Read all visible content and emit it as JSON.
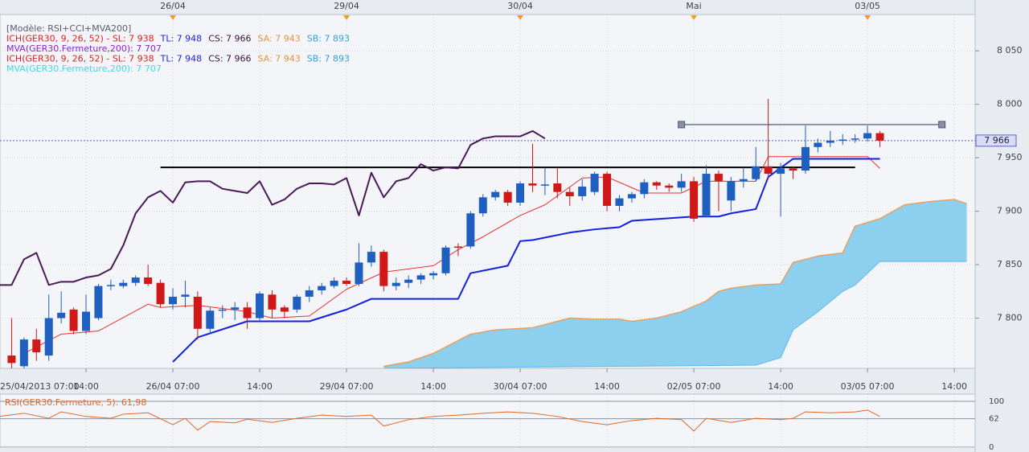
{
  "chart_data": {
    "type": "candlestick",
    "legend_lines": [
      [
        {
          "text": "[Modèle: RSI+CCI+MVA200]",
          "color": "#5a5a70"
        }
      ],
      [
        {
          "text": "ICH(GER30, 9, 26, 52) -  SL: 7 938",
          "color": "#e02020"
        },
        {
          "text": "TL: 7 948",
          "color": "#2020e0"
        },
        {
          "text": "CS: 7 966",
          "color": "#3a1040"
        },
        {
          "text": "SA: 7 943",
          "color": "#e89040"
        },
        {
          "text": "SB: 7 893",
          "color": "#30a0e0"
        }
      ],
      [
        {
          "text": "MVA(GER30.Fermeture,200): 7 707",
          "color": "#9020d0"
        }
      ],
      [
        {
          "text": "ICH(GER30, 9, 26, 52) -  SL: 7 938",
          "color": "#e02020"
        },
        {
          "text": "TL: 7 948",
          "color": "#2020e0"
        },
        {
          "text": "CS: 7 966",
          "color": "#3a1040"
        },
        {
          "text": "SA: 7 943",
          "color": "#e89040"
        },
        {
          "text": "SB: 7 893",
          "color": "#30a0e0"
        }
      ],
      [
        {
          "text": "MVA(GER30.Fermeture,200): 7 707",
          "color": "#40d8e8"
        }
      ]
    ],
    "top_labels": {
      "x": [
        14,
        28,
        42,
        56,
        70
      ],
      "labels": [
        "26/04",
        "29/04",
        "30/04",
        "Mai",
        "03/05"
      ],
      "color": "#f0a020"
    },
    "xticks": [
      {
        "value": 0,
        "label": "25/04/2013 07:00"
      },
      {
        "value": 7,
        "label": "14:00"
      },
      {
        "value": 14,
        "label": "26/04 07:00"
      },
      {
        "value": 21,
        "label": "14:00"
      },
      {
        "value": 28,
        "label": "29/04 07:00"
      },
      {
        "value": 35,
        "label": "14:00"
      },
      {
        "value": 42,
        "label": "30/04 07:00"
      },
      {
        "value": 49,
        "label": "14:00"
      },
      {
        "value": 56,
        "label": "02/05 07:00"
      },
      {
        "value": 63,
        "label": "14:00"
      },
      {
        "value": 70,
        "label": "03/05 07:00"
      },
      {
        "value": 77,
        "label": "14:00"
      }
    ],
    "ylim": [
      7753,
      8084
    ],
    "yticks": [
      {
        "value": 7800,
        "label": "7 800"
      },
      {
        "value": 7850,
        "label": "7 850"
      },
      {
        "value": 7900,
        "label": "7 900"
      },
      {
        "value": 7950,
        "label": "7 950"
      },
      {
        "value": 8000,
        "label": "8 000"
      },
      {
        "value": 8050,
        "label": "8 050"
      }
    ],
    "grid": true,
    "up_color": "#1f5fc0",
    "down_color": "#d01818",
    "open": [
      null,
      7765,
      7755,
      7780,
      7765,
      7800,
      7808,
      7788,
      7800,
      7830,
      7830,
      7833,
      7838,
      7833,
      7813,
      7820,
      7820,
      7790,
      7807,
      7808,
      7810,
      7800,
      7822,
      7810,
      7808,
      7820,
      7826,
      7830,
      7835,
      7832,
      7852,
      7862,
      7830,
      7833,
      7836,
      7840,
      7842,
      7867,
      7867,
      7898,
      7913,
      7918,
      7908,
      7926,
      7924,
      7926,
      7918,
      7914,
      7918,
      7935,
      7905,
      7912,
      7916,
      7927,
      7924,
      7922,
      7928,
      7896,
      7935,
      7910,
      7928,
      7930,
      7942,
      7935,
      7940,
      7938,
      7960,
      7964,
      7966,
      7967,
      7968,
      7973
    ],
    "high": [
      null,
      7800,
      7782,
      7790,
      7822,
      7825,
      7810,
      7822,
      7832,
      7836,
      7836,
      7840,
      7850,
      7836,
      7828,
      7835,
      7825,
      7810,
      7812,
      7815,
      7815,
      7825,
      7826,
      7812,
      7822,
      7830,
      7833,
      7838,
      7838,
      7870,
      7868,
      7864,
      7838,
      7840,
      7842,
      7844,
      7868,
      7870,
      7900,
      7916,
      7920,
      7920,
      7928,
      7963,
      7940,
      7940,
      7922,
      7930,
      7937,
      7937,
      7915,
      7918,
      7930,
      7928,
      7926,
      7935,
      7932,
      7943,
      7938,
      7932,
      7940,
      7960,
      8005,
      7945,
      7942,
      7980,
      7968,
      7975,
      7972,
      7972,
      7980,
      7975
    ],
    "low": [
      null,
      7750,
      7752,
      7760,
      7760,
      7795,
      7785,
      7785,
      7798,
      7826,
      7828,
      7830,
      7830,
      7810,
      7808,
      7810,
      7780,
      7785,
      7800,
      7798,
      7790,
      7798,
      7800,
      7800,
      7805,
      7815,
      7822,
      7828,
      7830,
      7830,
      7848,
      7825,
      7826,
      7828,
      7832,
      7836,
      7840,
      7858,
      7865,
      7895,
      7910,
      7905,
      7905,
      7918,
      7915,
      7912,
      7905,
      7910,
      7915,
      7900,
      7900,
      7908,
      7912,
      7920,
      7918,
      7918,
      7890,
      7894,
      7900,
      7900,
      7922,
      7928,
      7930,
      7895,
      7930,
      7935,
      7955,
      7960,
      7962,
      7964,
      7965,
      7960
    ],
    "close": [
      null,
      7758,
      7780,
      7768,
      7800,
      7805,
      7788,
      7806,
      7830,
      7831,
      7833,
      7838,
      7832,
      7813,
      7820,
      7822,
      7790,
      7807,
      7808,
      7810,
      7800,
      7823,
      7808,
      7806,
      7820,
      7826,
      7830,
      7835,
      7832,
      7852,
      7862,
      7830,
      7833,
      7836,
      7840,
      7842,
      7866,
      7866,
      7898,
      7913,
      7918,
      7908,
      7926,
      7924,
      7925,
      7918,
      7914,
      7923,
      7935,
      7905,
      7912,
      7916,
      7927,
      7924,
      7922,
      7928,
      7893,
      7935,
      7928,
      7928,
      7930,
      7942,
      7935,
      7940,
      7938,
      7960,
      7964,
      7966,
      7967,
      7968,
      7973,
      7966
    ],
    "cloud": {
      "color": "#8ccfee",
      "edge_color": "#e8a060",
      "upper": {
        "x": [
          31,
          33,
          35,
          38,
          40,
          43,
          46,
          48,
          50,
          51,
          53,
          55,
          57,
          58,
          59,
          61,
          63,
          64,
          66,
          68,
          69,
          71,
          73,
          75,
          77,
          78
        ],
        "values": [
          7755,
          7759,
          7767,
          7785,
          7789,
          7791,
          7800,
          7799,
          7799,
          7797,
          7800,
          7806,
          7816,
          7825,
          7828,
          7831,
          7832,
          7852,
          7858,
          7861,
          7886,
          7893,
          7906,
          7909,
          7911,
          7907
        ]
      },
      "lower": {
        "x": [
          31,
          61,
          63,
          64,
          66,
          68,
          69,
          71,
          78
        ],
        "values": [
          7753,
          7756,
          7763,
          7789,
          7806,
          7825,
          7831,
          7853,
          7853
        ]
      }
    },
    "lines": [
      {
        "color": "#4a1a58",
        "style": "thick",
        "values": [
          7831,
          7831,
          7855,
          7861,
          7831,
          7834,
          7834,
          7838,
          7840,
          7846,
          7868,
          7898,
          7913,
          7919,
          7908,
          7927,
          7928,
          7928,
          7921,
          7919,
          7917,
          7928,
          7906,
          7911,
          7921,
          7926,
          7926,
          7925,
          7931,
          7896,
          7936,
          7913,
          7928,
          7931,
          7944,
          7938,
          7941,
          7940,
          7962,
          7968,
          7970,
          7970,
          7970,
          7975,
          7968
        ]
      },
      {
        "color": "#e83030",
        "style": "thin",
        "x": [
          2,
          5,
          8,
          12,
          13,
          16,
          20,
          22,
          25,
          28,
          31,
          35,
          37,
          39,
          42,
          44,
          47,
          49,
          52,
          55,
          57,
          61,
          62,
          70,
          71
        ],
        "values": [
          7767,
          7785,
          7788,
          7813,
          7810,
          7812,
          7806,
          7800,
          7802,
          7827,
          7843,
          7849,
          7864,
          7876,
          7896,
          7906,
          7931,
          7932,
          7917,
          7917,
          7928,
          7928,
          7951,
          7951,
          7940
        ]
      },
      {
        "color": "#1020e0",
        "style": "thick",
        "x": [
          14,
          16,
          20,
          25,
          28,
          30,
          37,
          38,
          41,
          42,
          43,
          46,
          48,
          50,
          51,
          56,
          58,
          59,
          61,
          62,
          64,
          70,
          71
        ],
        "values": [
          7759,
          7782,
          7797,
          7797,
          7808,
          7818,
          7818,
          7842,
          7849,
          7872,
          7873,
          7880,
          7883,
          7885,
          7891,
          7895,
          7895,
          7898,
          7902,
          7932,
          7949,
          7949,
          7949
        ]
      }
    ],
    "hlines": [
      {
        "value": 7941,
        "from": 13,
        "to": 69,
        "color": "#000000",
        "handles": false
      },
      {
        "value": 7981,
        "from": 55,
        "to": 76,
        "color": "#8890a8",
        "handles": true
      }
    ],
    "price_line": {
      "value": 7966,
      "label": "7 966",
      "color": "#6060c0"
    },
    "rsi": {
      "title": "RSI(GER30.Fermeture, 5): 61,98",
      "color": "#e06828",
      "ylim": [
        0,
        100
      ],
      "yticks": [
        0,
        62,
        100
      ],
      "x": [
        0,
        2,
        4,
        5,
        7,
        9,
        10,
        12,
        14,
        15,
        16,
        17,
        19,
        20,
        22,
        24,
        26,
        28,
        30,
        31,
        33,
        35,
        37,
        39,
        41,
        43,
        45,
        47,
        49,
        51,
        53,
        55,
        56,
        57,
        59,
        61,
        63,
        64,
        65,
        67,
        69,
        70,
        71
      ],
      "values": [
        67,
        74,
        63,
        77,
        67,
        63,
        72,
        75,
        49,
        63,
        37,
        56,
        53,
        61,
        54,
        63,
        70,
        67,
        70,
        46,
        60,
        67,
        70,
        74,
        77,
        74,
        67,
        56,
        49,
        58,
        63,
        60,
        35,
        63,
        54,
        63,
        60,
        63,
        77,
        75,
        77,
        81,
        67
      ]
    }
  }
}
